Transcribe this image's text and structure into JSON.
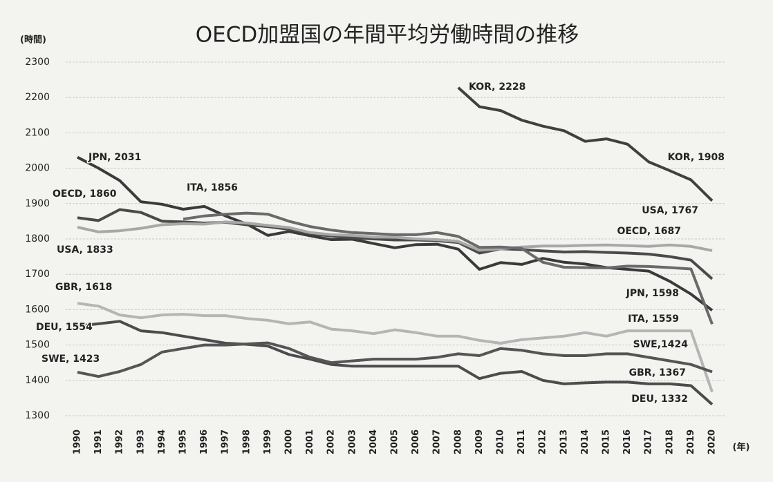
{
  "chart_data": {
    "type": "line",
    "title": "OECD加盟国の年間平均労働時間の推移",
    "y_label": "(時間)",
    "x_label": "(年)",
    "categories": [
      "1990",
      "1991",
      "1992",
      "1993",
      "1994",
      "1995",
      "1996",
      "1997",
      "1998",
      "1999",
      "2000",
      "2001",
      "2002",
      "2003",
      "2004",
      "2005",
      "2006",
      "2007",
      "2008",
      "2009",
      "2010",
      "2011",
      "2012",
      "2013",
      "2014",
      "2015",
      "2016",
      "2017",
      "2018",
      "2019",
      "2020"
    ],
    "ylim": [
      1300,
      2300
    ],
    "yticks": [
      1300,
      1400,
      1500,
      1600,
      1700,
      1800,
      1900,
      2000,
      2100,
      2200,
      2300
    ],
    "grid": true,
    "series": [
      {
        "name": "JPN",
        "color": "#3a3a3a",
        "values": [
          2031,
          2000,
          1965,
          1905,
          1898,
          1884,
          1892,
          1865,
          1842,
          1810,
          1821,
          1809,
          1798,
          1799,
          1787,
          1775,
          1784,
          1785,
          1771,
          1714,
          1733,
          1728,
          1745,
          1734,
          1729,
          1719,
          1714,
          1709,
          1680,
          1644,
          1598
        ],
        "value_labels": [
          "JPN, 2031",
          null,
          null,
          null,
          null,
          null,
          null,
          null,
          null,
          null,
          null,
          null,
          null,
          null,
          null,
          null,
          null,
          null,
          null,
          null,
          null,
          null,
          null,
          null,
          null,
          null,
          null,
          null,
          null,
          null,
          "JPN, 1598"
        ]
      },
      {
        "name": "OECD",
        "color": "#4a4a4a",
        "values": [
          1860,
          1852,
          1883,
          1875,
          1850,
          1848,
          1845,
          1847,
          1840,
          1835,
          1827,
          1815,
          1808,
          1803,
          1800,
          1797,
          1797,
          1795,
          1790,
          1760,
          1772,
          1770,
          1766,
          1763,
          1764,
          1762,
          1760,
          1757,
          1750,
          1740,
          1687
        ],
        "value_labels": [
          "OECD, 1860",
          null,
          null,
          null,
          null,
          null,
          null,
          null,
          null,
          null,
          null,
          null,
          null,
          null,
          null,
          null,
          null,
          null,
          null,
          null,
          null,
          null,
          null,
          null,
          null,
          null,
          null,
          null,
          null,
          null,
          "OECD, 1687"
        ]
      },
      {
        "name": "USA",
        "color": "#a8a8a8",
        "values": [
          1833,
          1820,
          1823,
          1830,
          1840,
          1843,
          1842,
          1848,
          1845,
          1838,
          1832,
          1818,
          1812,
          1810,
          1805,
          1805,
          1800,
          1798,
          1793,
          1768,
          1772,
          1777,
          1780,
          1780,
          1782,
          1783,
          1781,
          1779,
          1783,
          1779,
          1767
        ],
        "value_labels": [
          "USA, 1833",
          null,
          null,
          null,
          null,
          null,
          null,
          null,
          null,
          null,
          null,
          null,
          null,
          null,
          null,
          null,
          null,
          null,
          null,
          null,
          null,
          null,
          null,
          null,
          null,
          null,
          null,
          null,
          null,
          null,
          "USA, 1767"
        ]
      },
      {
        "name": "ITA",
        "color": "#6a6a6a",
        "values": [
          null,
          null,
          null,
          null,
          null,
          1856,
          1865,
          1870,
          1873,
          1870,
          1850,
          1835,
          1825,
          1818,
          1815,
          1812,
          1812,
          1818,
          1807,
          1776,
          1777,
          1773,
          1734,
          1720,
          1719,
          1718,
          1723,
          1722,
          1719,
          1715,
          1559
        ],
        "value_labels": [
          null,
          null,
          null,
          null,
          null,
          "ITA, 1856",
          null,
          null,
          null,
          null,
          null,
          null,
          null,
          null,
          null,
          null,
          null,
          null,
          null,
          null,
          null,
          null,
          null,
          null,
          null,
          null,
          null,
          null,
          null,
          null,
          "ITA, 1559"
        ]
      },
      {
        "name": "KOR",
        "color": "#404040",
        "values": [
          null,
          null,
          null,
          null,
          null,
          null,
          null,
          null,
          null,
          null,
          null,
          null,
          null,
          null,
          null,
          null,
          null,
          null,
          2228,
          2174,
          2163,
          2136,
          2119,
          2106,
          2076,
          2083,
          2068,
          2018,
          1993,
          1967,
          1908
        ],
        "value_labels": [
          null,
          null,
          null,
          null,
          null,
          null,
          null,
          null,
          null,
          null,
          null,
          null,
          null,
          null,
          null,
          null,
          null,
          null,
          "KOR, 2228",
          null,
          null,
          null,
          null,
          null,
          null,
          null,
          null,
          null,
          null,
          null,
          "KOR, 1908"
        ]
      },
      {
        "name": "GBR",
        "color": "#b5b5b5",
        "values": [
          1618,
          1610,
          1585,
          1577,
          1585,
          1587,
          1583,
          1583,
          1575,
          1570,
          1560,
          1565,
          1545,
          1540,
          1532,
          1543,
          1535,
          1525,
          1525,
          1513,
          1505,
          1515,
          1520,
          1525,
          1535,
          1525,
          1540,
          1540,
          1540,
          1540,
          1367
        ],
        "value_labels": [
          "GBR, 1618",
          null,
          null,
          null,
          null,
          null,
          null,
          null,
          null,
          null,
          null,
          null,
          null,
          null,
          null,
          null,
          null,
          null,
          null,
          null,
          null,
          null,
          null,
          null,
          null,
          null,
          null,
          null,
          null,
          null,
          "GBR, 1367"
        ]
      },
      {
        "name": "DEU",
        "color": "#4c4c4c",
        "values": [
          1554,
          1560,
          1567,
          1540,
          1535,
          1525,
          1515,
          1505,
          1502,
          1497,
          1473,
          1460,
          1445,
          1440,
          1440,
          1440,
          1440,
          1440,
          1440,
          1405,
          1420,
          1425,
          1400,
          1390,
          1393,
          1395,
          1395,
          1390,
          1390,
          1385,
          1332
        ],
        "value_labels": [
          "DEU, 1554",
          null,
          null,
          null,
          null,
          null,
          null,
          null,
          null,
          null,
          null,
          null,
          null,
          null,
          null,
          null,
          null,
          null,
          null,
          null,
          null,
          null,
          null,
          null,
          null,
          null,
          null,
          null,
          null,
          null,
          "DEU, 1332"
        ]
      },
      {
        "name": "SWE",
        "color": "#555555",
        "values": [
          1423,
          1411,
          1425,
          1445,
          1480,
          1490,
          1500,
          1500,
          1503,
          1506,
          1490,
          1465,
          1450,
          1455,
          1460,
          1460,
          1460,
          1465,
          1475,
          1470,
          1490,
          1485,
          1475,
          1470,
          1470,
          1475,
          1475,
          1465,
          1455,
          1445,
          1424
        ],
        "value_labels": [
          "SWE, 1423",
          null,
          null,
          null,
          null,
          null,
          null,
          null,
          null,
          null,
          null,
          null,
          null,
          null,
          null,
          null,
          null,
          null,
          null,
          null,
          null,
          null,
          null,
          null,
          null,
          null,
          null,
          null,
          null,
          null,
          "SWE,1424"
        ]
      }
    ]
  }
}
